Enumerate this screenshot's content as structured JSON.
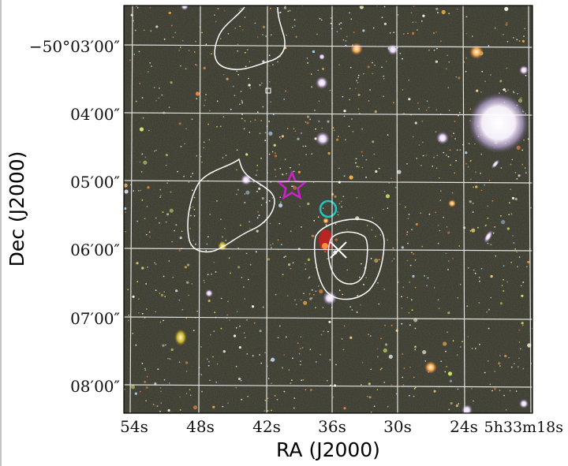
{
  "figure": {
    "xlabel": "RA (J2000)",
    "ylabel": "Dec (J2000)",
    "ra_ticks": [
      "54s",
      "48s",
      "42s",
      "36s",
      "30s",
      "24s",
      "5h33m18s"
    ],
    "dec_ticks": [
      "−50°03′00″",
      "04′00″",
      "05′00″",
      "06′00″",
      "07′00″",
      "08′00″"
    ],
    "grid": true,
    "background": "optical color composite star field",
    "colors": {
      "grid": "#ffffff",
      "contour": "#ffffff",
      "star_marker": "#cc22cc",
      "circle_marker": "#22c4c4",
      "cross_marker": "#ffffff",
      "red_source": "#dd2222"
    },
    "markers": [
      "star",
      "circle",
      "cross"
    ],
    "contours": 3
  }
}
